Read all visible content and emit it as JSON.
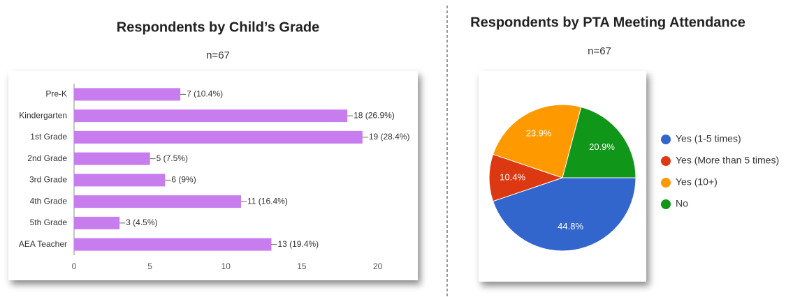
{
  "chart_data": [
    {
      "type": "bar",
      "title": "Respondents by Child’s Grade",
      "subtitle": "n=67",
      "categories": [
        "Pre-K",
        "Kindergarten",
        "1st Grade",
        "2nd Grade",
        "3rd Grade",
        "4th Grade",
        "5th Grade",
        "AEA Teacher"
      ],
      "values": [
        7,
        18,
        19,
        5,
        6,
        11,
        3,
        13
      ],
      "value_labels": [
        "7 (10.4%)",
        "18 (26.9%)",
        "19 (28.4%)",
        "5 (7.5%)",
        "6 (9%)",
        "11 (16.4%)",
        "3 (4.5%)",
        "13 (19.4%)"
      ],
      "color": "#c77dee",
      "xlim": [
        0,
        22
      ],
      "xticks": [
        0,
        5,
        10,
        15,
        20
      ],
      "grid": false
    },
    {
      "type": "pie",
      "title": "Respondents by PTA Meeting Attendance",
      "subtitle": "n=67",
      "categories": [
        "Yes (1-5 times)",
        "Yes (More than 5 times)",
        "Yes (10+)",
        "No"
      ],
      "values": [
        44.8,
        10.4,
        23.9,
        20.9
      ],
      "value_labels": [
        "44.8%",
        "10.4%",
        "23.9%",
        "20.9%"
      ],
      "colors": [
        "#3366cc",
        "#dc3912",
        "#ff9900",
        "#109618"
      ],
      "legend": "right"
    }
  ]
}
